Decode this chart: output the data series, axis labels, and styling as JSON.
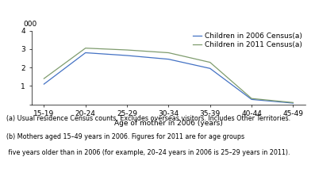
{
  "categories": [
    "15-19",
    "20-24",
    "25-29",
    "30-34",
    "35-39",
    "40-44",
    "45-49"
  ],
  "x_positions": [
    0,
    1,
    2,
    3,
    4,
    5,
    6
  ],
  "series_2006": [
    1.1,
    2.8,
    2.65,
    2.45,
    1.95,
    0.27,
    0.07
  ],
  "series_2011": [
    1.4,
    3.05,
    2.95,
    2.8,
    2.28,
    0.32,
    0.1
  ],
  "color_2006": "#4472C4",
  "color_2011": "#7f9c6e",
  "legend_2006": "Children in 2006 Census(a)",
  "legend_2011": "Children in 2011 Census(a)",
  "xlabel": "Age of mother in 2006 (years)",
  "ylabel": "000",
  "ylim": [
    0,
    4
  ],
  "yticks": [
    0,
    1,
    2,
    3,
    4
  ],
  "footnote1": "(a) Usual residence Census counts. Excludes overseas visitors. Includes Other Territories.",
  "footnote2": "(b) Mothers aged 15–49 years in 2006. Figures for 2011 are for age groups",
  "footnote3": " five years older than in 2006 (for example, 20–24 years in 2006 is 25–29 years in 2011).",
  "background_color": "#ffffff",
  "axis_fontsize": 6.5,
  "footnote_fontsize": 5.8,
  "legend_fontsize": 6.5,
  "linewidth": 0.9
}
